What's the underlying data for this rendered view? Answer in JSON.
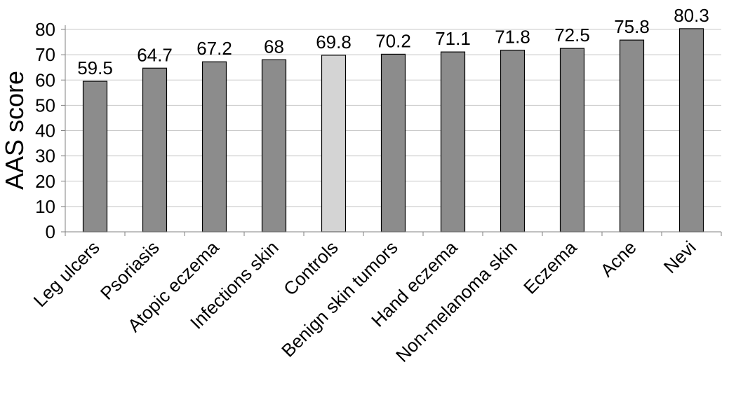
{
  "chart_data": {
    "type": "bar",
    "categories": [
      "Leg ulcers",
      "Psoriasis",
      "Atopic eczema",
      "Infections skin",
      "Controls",
      "Benign skin tumors",
      "Hand eczema",
      "Non-melanoma skin",
      "Eczema",
      "Acne",
      "Nevi"
    ],
    "values": [
      59.5,
      64.7,
      67.2,
      68,
      69.8,
      70.2,
      71.1,
      71.8,
      72.5,
      75.8,
      80.3
    ],
    "data_labels": [
      "59.5",
      "64.7",
      "67.2",
      "68",
      "69.8",
      "70.2",
      "71.1",
      "71.8",
      "72.5",
      "75.8",
      "80.3"
    ],
    "ylabel": "AAS score",
    "ylim": [
      0,
      80
    ],
    "yticks": [
      0,
      10,
      20,
      30,
      40,
      50,
      60,
      70,
      80
    ],
    "grid": true,
    "legend": "none",
    "colors": {
      "bar": "#8c8c8c",
      "highlight_bar": "#d4d4d4",
      "highlight_category": "Controls",
      "grid": "#c8c8c8",
      "axis": "#808080"
    }
  }
}
